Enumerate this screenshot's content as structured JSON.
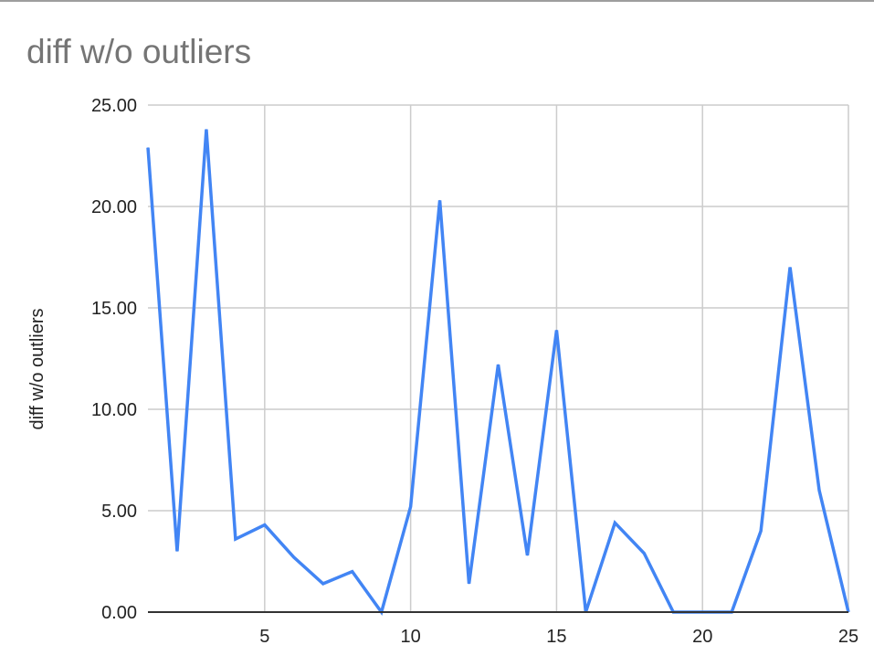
{
  "chart_data": {
    "type": "line",
    "title": "diff w/o outliers",
    "xlabel": "",
    "ylabel": "diff w/o outliers",
    "x": [
      1,
      2,
      3,
      4,
      5,
      6,
      7,
      8,
      9,
      10,
      11,
      12,
      13,
      14,
      15,
      16,
      17,
      18,
      19,
      20,
      21,
      22,
      23,
      24,
      25
    ],
    "series": [
      {
        "values": [
          22.9,
          3.0,
          23.8,
          3.6,
          4.3,
          2.7,
          1.4,
          2.0,
          0.0,
          5.2,
          20.3,
          1.4,
          12.2,
          2.8,
          13.9,
          0.0,
          4.4,
          2.9,
          0.0,
          0.0,
          0.0,
          4.0,
          17.0,
          6.0,
          0.0
        ],
        "color": "#4285f4"
      }
    ],
    "xlim": [
      1,
      25
    ],
    "ylim": [
      0,
      25
    ],
    "xticks": [
      "5",
      "10",
      "15",
      "20",
      "25"
    ],
    "xtick_values": [
      5,
      10,
      15,
      20,
      25
    ],
    "yticks": [
      "0.00",
      "5.00",
      "10.00",
      "15.00",
      "20.00",
      "25.00"
    ],
    "ytick_values": [
      0,
      5,
      10,
      15,
      20,
      25
    ],
    "grid": true,
    "legend": "none"
  }
}
